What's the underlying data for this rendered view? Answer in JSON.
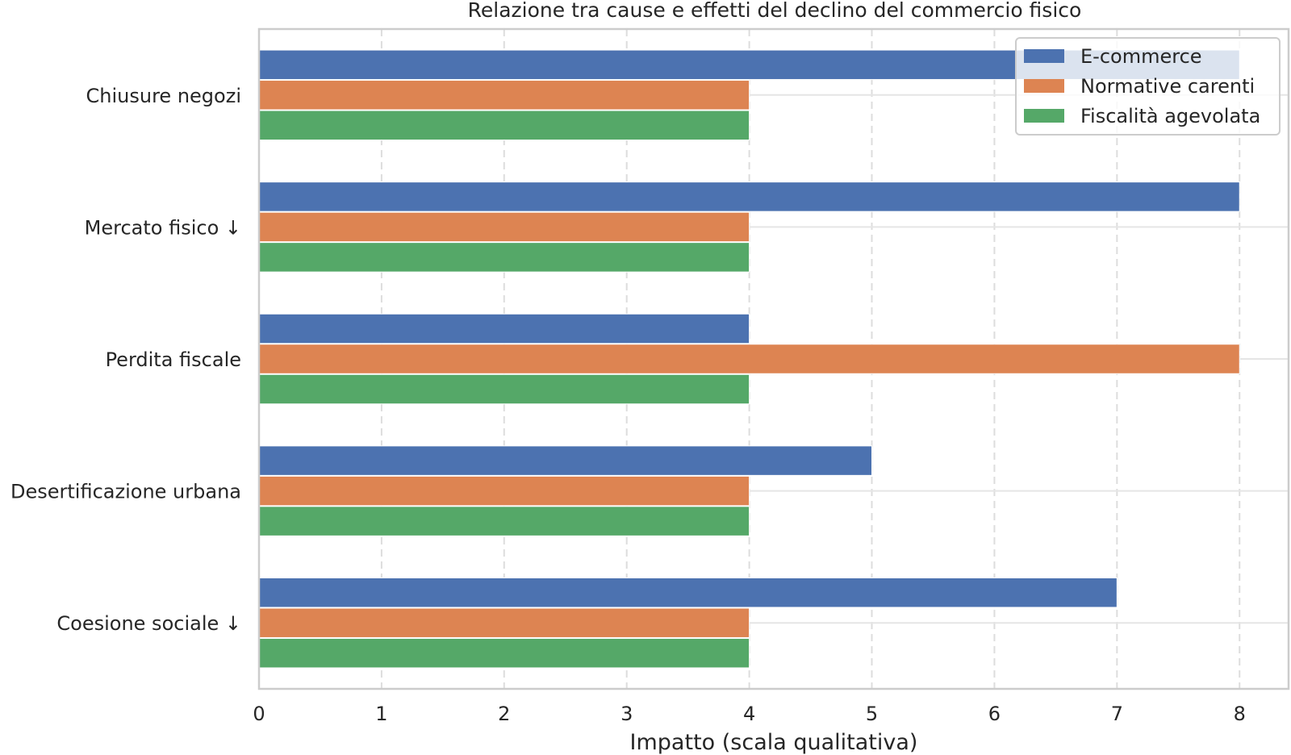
{
  "chart_data": {
    "type": "bar",
    "orientation": "horizontal",
    "title": "Relazione tra cause e effetti del declino del commercio fisico",
    "xlabel": "Impatto (scala qualitativa)",
    "ylabel": "",
    "xlim": [
      0,
      8.4
    ],
    "xticks": [
      "0",
      "1",
      "2",
      "3",
      "4",
      "5",
      "6",
      "7",
      "8"
    ],
    "categories": [
      "Chiusure negozi",
      "Mercato fisico ↓",
      "Perdita fiscale",
      "Desertificazione urbana",
      "Coesione sociale ↓"
    ],
    "series": [
      {
        "name": "E-commerce",
        "color": "#4c72b0",
        "values": [
          8,
          8,
          4,
          5,
          7
        ]
      },
      {
        "name": "Normative carenti",
        "color": "#dd8452",
        "values": [
          4,
          4,
          8,
          4,
          4
        ]
      },
      {
        "name": "Fiscalità agevolata",
        "color": "#55a868",
        "values": [
          4,
          4,
          4,
          4,
          4
        ]
      }
    ],
    "grid": true,
    "legend_position": "top-right"
  }
}
